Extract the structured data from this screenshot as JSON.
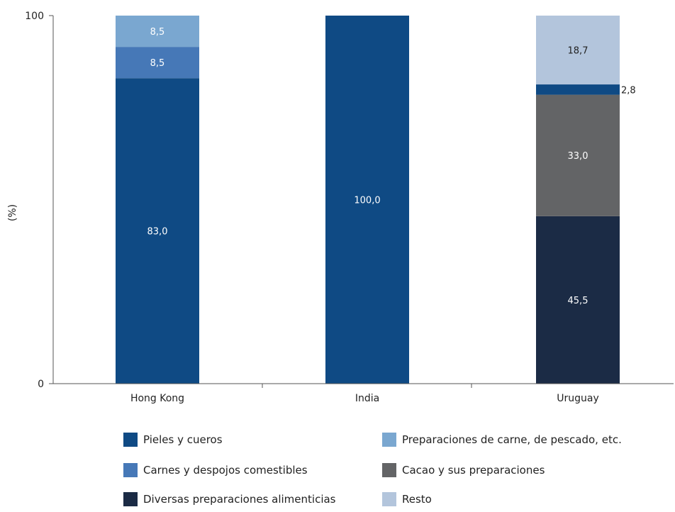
{
  "chart_data": {
    "type": "bar",
    "stacked": true,
    "ylabel": "(%)",
    "ylim": [
      0,
      100
    ],
    "yticks": [
      "0",
      "100"
    ],
    "categories": [
      "Hong Kong",
      "India",
      "Uruguay"
    ],
    "series": [
      {
        "name": "Diversas preparaciones alimenticias",
        "color": "#1b2b45",
        "values": [
          0,
          0,
          45.5
        ],
        "labels": [
          "",
          "",
          "45,5"
        ]
      },
      {
        "name": "Cacao y sus preparaciones",
        "color": "#636466",
        "values": [
          0,
          0,
          33.0
        ],
        "labels": [
          "",
          "",
          "33,0"
        ]
      },
      {
        "name": "Pieles y cueros",
        "color": "#0f4a84",
        "values": [
          83.0,
          100.0,
          2.8
        ],
        "labels": [
          "83,0",
          "100,0",
          "2,8"
        ]
      },
      {
        "name": "Carnes y despojos comestibles",
        "color": "#4678b7",
        "values": [
          8.5,
          0,
          0
        ],
        "labels": [
          "8,5",
          "",
          ""
        ]
      },
      {
        "name": "Preparaciones de carne, de pescado, etc.",
        "color": "#7aa7d0",
        "values": [
          8.5,
          0,
          0
        ],
        "labels": [
          "8,5",
          "",
          ""
        ]
      },
      {
        "name": "Resto",
        "color": "#b3c5dc",
        "values": [
          0,
          0,
          18.7
        ],
        "labels": [
          "",
          "",
          "18,7"
        ]
      }
    ],
    "legend_order": [
      "Pieles y cueros",
      "Preparaciones de carne, de pescado, etc.",
      "Carnes y despojos comestibles",
      "Cacao y sus preparaciones",
      "Diversas preparaciones alimenticias",
      "Resto"
    ],
    "legend_position": "bottom",
    "grid": false
  }
}
